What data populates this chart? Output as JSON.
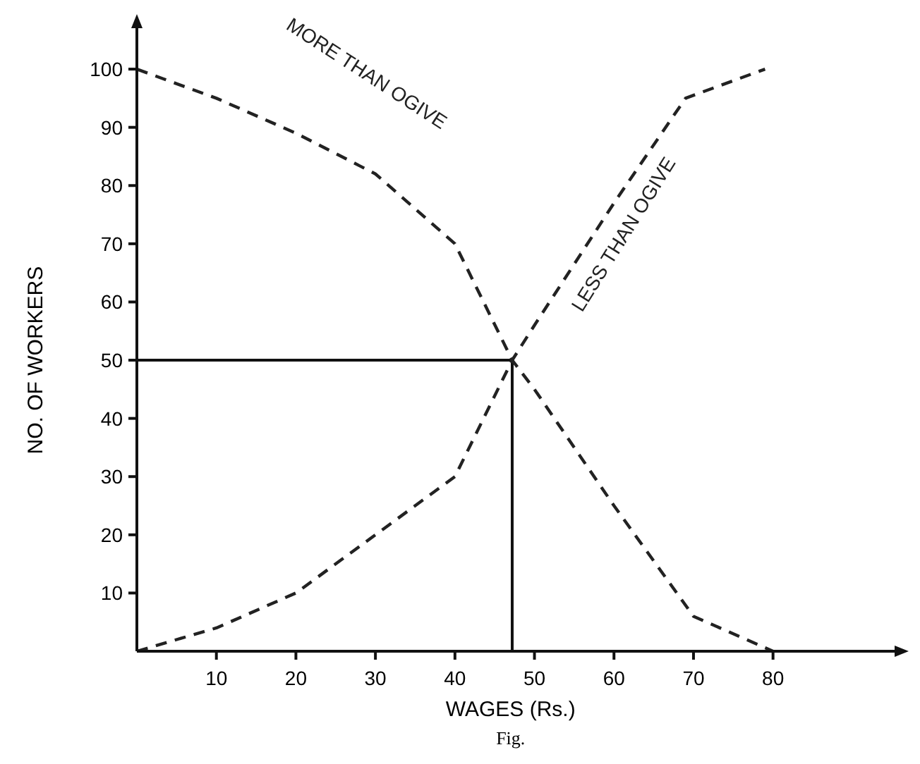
{
  "chart_data": {
    "type": "line",
    "xlabel": "WAGES (Rs.)",
    "ylabel": "NO. OF WORKERS",
    "annotations": [
      "Fig."
    ],
    "xlim": [
      0,
      96
    ],
    "ylim": [
      0,
      108
    ],
    "xticks": [
      10,
      20,
      30,
      40,
      50,
      60,
      70,
      80
    ],
    "yticks": [
      10,
      20,
      30,
      40,
      50,
      60,
      70,
      80,
      90,
      100
    ],
    "grid": false,
    "marker": "none",
    "line_style": "dashed",
    "series": [
      {
        "name": "MORE THAN OGIVE",
        "color": "#222222",
        "x": [
          0,
          10,
          20,
          30,
          40,
          47.2,
          50,
          60,
          70,
          80
        ],
        "values": [
          100,
          95,
          89,
          82,
          70,
          50,
          45,
          25,
          6,
          0
        ]
      },
      {
        "name": "LESS THAN OGIVE",
        "color": "#222222",
        "x": [
          0,
          10,
          20,
          30,
          40,
          47.2,
          50,
          60,
          69,
          79
        ],
        "values": [
          0,
          4,
          10,
          20,
          30,
          50,
          56,
          77,
          95,
          100
        ]
      }
    ],
    "ref_lines": [
      {
        "axis": "y",
        "value": 50,
        "color": "#111111",
        "line_style": "solid"
      },
      {
        "axis": "x",
        "value": 47.2,
        "color": "#111111",
        "line_style": "solid"
      }
    ]
  }
}
